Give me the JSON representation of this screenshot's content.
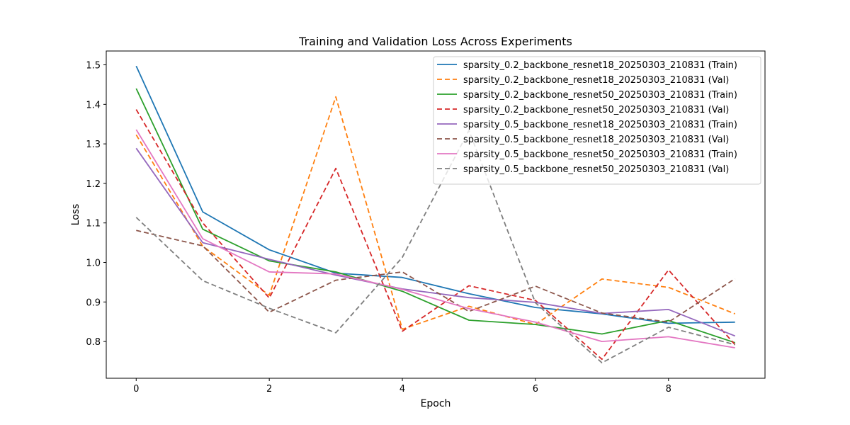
{
  "chart_data": {
    "type": "line",
    "title": "Training and Validation Loss Across Experiments",
    "xlabel": "Epoch",
    "ylabel": "Loss",
    "xlim": [
      -0.45,
      9.45
    ],
    "ylim": [
      0.707,
      1.535
    ],
    "xticks": [
      0,
      2,
      4,
      6,
      8
    ],
    "yticks": [
      0.8,
      0.9,
      1.0,
      1.1,
      1.2,
      1.3,
      1.4,
      1.5
    ],
    "ytick_labels": [
      "0.8",
      "0.9",
      "1.0",
      "1.1",
      "1.2",
      "1.3",
      "1.4",
      "1.5"
    ],
    "legend_position": "top-right",
    "grid": false,
    "x": [
      0,
      1,
      2,
      3,
      4,
      5,
      6,
      7,
      8,
      9
    ],
    "series": [
      {
        "name": "sparsity_0.2_backbone_resnet18_20250303_210831 (Train)",
        "color": "#1f77b4",
        "dashed": false,
        "values": [
          1.497,
          1.128,
          1.032,
          0.973,
          0.962,
          0.921,
          0.886,
          0.87,
          0.846,
          0.849
        ]
      },
      {
        "name": "sparsity_0.2_backbone_resnet18_20250303_210831 (Val)",
        "color": "#ff7f0e",
        "dashed": true,
        "values": [
          1.323,
          1.041,
          0.917,
          1.419,
          0.831,
          0.889,
          0.843,
          0.958,
          0.937,
          0.87
        ]
      },
      {
        "name": "sparsity_0.2_backbone_resnet50_20250303_210831 (Train)",
        "color": "#2ca02c",
        "dashed": false,
        "values": [
          1.44,
          1.084,
          1.004,
          0.976,
          0.927,
          0.854,
          0.843,
          0.819,
          0.853,
          0.797
        ]
      },
      {
        "name": "sparsity_0.2_backbone_resnet50_20250303_210831 (Val)",
        "color": "#d62728",
        "dashed": true,
        "values": [
          1.387,
          1.1,
          0.91,
          1.238,
          0.826,
          0.941,
          0.904,
          0.755,
          0.981,
          0.792
        ]
      },
      {
        "name": "sparsity_0.5_backbone_resnet18_20250303_210831 (Train)",
        "color": "#9467bd",
        "dashed": false,
        "values": [
          1.289,
          1.05,
          1.008,
          0.968,
          0.933,
          0.911,
          0.899,
          0.871,
          0.881,
          0.814
        ]
      },
      {
        "name": "sparsity_0.5_backbone_resnet18_20250303_210831 (Val)",
        "color": "#8c564b",
        "dashed": true,
        "values": [
          1.081,
          1.042,
          0.874,
          0.955,
          0.976,
          0.876,
          0.94,
          0.872,
          0.849,
          0.959
        ]
      },
      {
        "name": "sparsity_0.5_backbone_resnet50_20250303_210831 (Train)",
        "color": "#e377c2",
        "dashed": false,
        "values": [
          1.336,
          1.06,
          0.976,
          0.971,
          0.932,
          0.883,
          0.849,
          0.8,
          0.812,
          0.784
        ]
      },
      {
        "name": "sparsity_0.5_backbone_resnet50_20250303_210831 (Val)",
        "color": "#7f7f7f",
        "dashed": true,
        "values": [
          1.114,
          0.954,
          0.884,
          0.822,
          1.013,
          1.334,
          0.898,
          0.746,
          0.836,
          0.792
        ]
      }
    ]
  }
}
